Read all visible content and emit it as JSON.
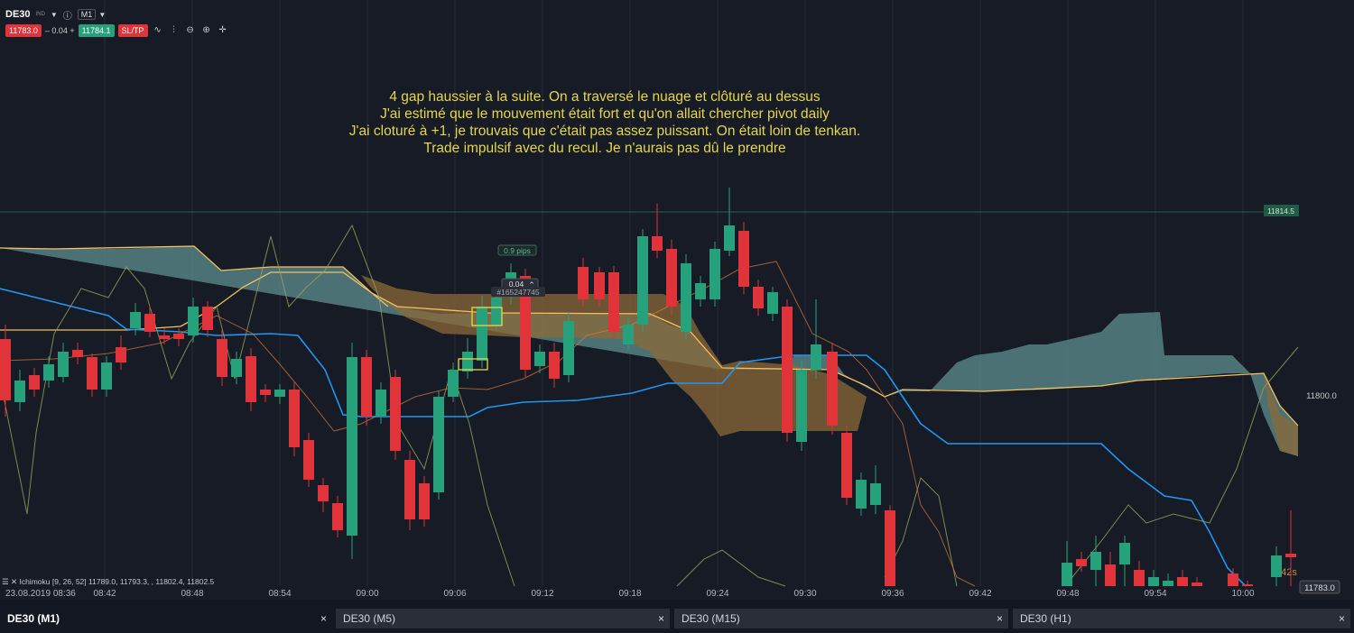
{
  "header": {
    "symbol": "DE30",
    "symbol_tag": "IND",
    "timeframe": "M1"
  },
  "trade_panel": {
    "sell_price": "11783.0",
    "spread": "– 0.04 +",
    "buy_price": "11784.1",
    "sltp_label": "SL/TP"
  },
  "annotation": {
    "lines": [
      "4 gap haussier à la suite. On a traversé le nuage et clôturé au dessus",
      "J'ai estimé que le mouvement était fort et qu'on allait chercher pivot daily",
      "J'ai cloturé à +1, je trouvais que c'était pas assez puissant. On était loin de tenkan.",
      "Trade impulsif avec du recul. Je n'aurais pas dû le prendre"
    ]
  },
  "position_labels": {
    "pips": "0.9 pips",
    "pnl": "0.04",
    "order_id": "#165247745"
  },
  "indicator_label": "Ichimoku [9, 26, 52] 11789.0, 11793.3, , 11802.4, 11802.5",
  "price_axis": {
    "level_high": "11814.5",
    "level_mid": "11800.0",
    "level_current": "11783.0"
  },
  "countdown": "42s",
  "time_axis": {
    "date_label": "23.08.2019 08:36",
    "ticks": [
      "08:42",
      "08:48",
      "08:54",
      "09:00",
      "09:06",
      "09:12",
      "09:18",
      "09:24",
      "09:30",
      "09:36",
      "09:42",
      "09:48",
      "09:54",
      "10:00"
    ]
  },
  "tabs": [
    {
      "label": "DE30 (M1)",
      "active": true
    },
    {
      "label": "DE30 (M5)",
      "active": false
    },
    {
      "label": "DE30 (M15)",
      "active": false
    },
    {
      "label": "DE30 (H1)",
      "active": false
    }
  ],
  "colors": {
    "bull": "#26a17b",
    "bear": "#e0333a",
    "tenkan": "#2196f3",
    "kijun": "#f0b03a",
    "chikou": "#9aa35a",
    "cloud_bull": "#5f8f8f",
    "cloud_bear": "#8b6a38",
    "annotation": "#e4d64a"
  }
}
